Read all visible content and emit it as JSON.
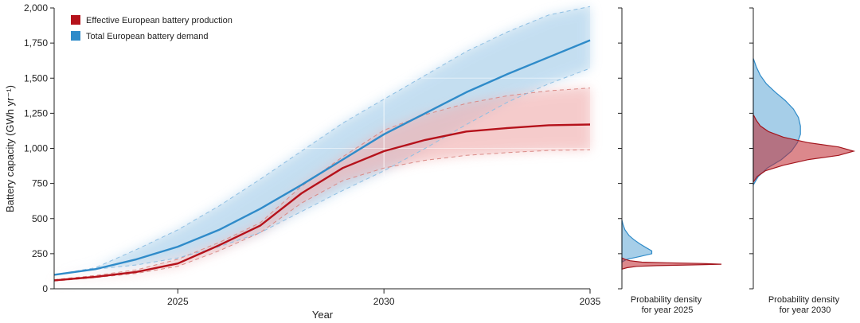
{
  "chart_data": [
    {
      "type": "line",
      "xlabel": "Year",
      "ylabel": "Battery capacity (GWh yr⁻¹)",
      "xlim": [
        2022,
        2035
      ],
      "ylim": [
        0,
        2000
      ],
      "x_ticks": [
        "2025",
        "2030",
        "2035"
      ],
      "y_ticks": [
        "0",
        "250",
        "500",
        "750",
        "1,000",
        "1,250",
        "1,500",
        "1,750",
        "2,000"
      ],
      "legend": {
        "position": "top-left"
      },
      "grid": false,
      "series": [
        {
          "name": "Effective European battery production",
          "color": "#b5121b",
          "x": [
            2022,
            2023,
            2024,
            2025,
            2026,
            2027,
            2028,
            2029,
            2030,
            2031,
            2032,
            2033,
            2034,
            2035
          ],
          "values": [
            60,
            85,
            120,
            180,
            310,
            450,
            680,
            860,
            980,
            1060,
            1120,
            1145,
            1165,
            1170
          ],
          "upper": [
            65,
            95,
            135,
            210,
            330,
            470,
            730,
            940,
            1130,
            1240,
            1320,
            1375,
            1410,
            1430
          ],
          "lower": [
            55,
            80,
            110,
            160,
            270,
            400,
            610,
            770,
            860,
            915,
            950,
            970,
            985,
            990
          ]
        },
        {
          "name": "Total European battery demand",
          "color": "#2f8bc9",
          "x": [
            2022,
            2023,
            2024,
            2025,
            2026,
            2027,
            2028,
            2029,
            2030,
            2031,
            2032,
            2033,
            2034,
            2035
          ],
          "values": [
            100,
            140,
            210,
            300,
            420,
            570,
            740,
            920,
            1100,
            1250,
            1400,
            1530,
            1650,
            1770
          ],
          "upper": [
            100,
            150,
            280,
            420,
            590,
            780,
            980,
            1180,
            1350,
            1520,
            1690,
            1830,
            1950,
            2010
          ],
          "lower": [
            100,
            140,
            170,
            220,
            300,
            400,
            550,
            700,
            840,
            1000,
            1170,
            1330,
            1460,
            1570
          ]
        }
      ]
    },
    {
      "type": "area",
      "title": "Probability density\nfor year 2025",
      "ylim": [
        0,
        2000
      ],
      "series": [
        {
          "name": "Effective European battery production",
          "y": [
            140,
            150,
            160,
            165,
            170,
            175,
            180,
            185,
            190,
            200,
            210,
            220
          ],
          "density": [
            0,
            0.05,
            0.15,
            0.35,
            0.7,
            1.0,
            0.8,
            0.45,
            0.2,
            0.08,
            0.03,
            0
          ]
        },
        {
          "name": "Total European battery demand",
          "y": [
            190,
            210,
            230,
            250,
            270,
            290,
            320,
            350,
            380,
            420,
            460,
            490
          ],
          "density": [
            0,
            0.05,
            0.18,
            0.3,
            0.3,
            0.25,
            0.18,
            0.12,
            0.07,
            0.03,
            0.01,
            0
          ]
        }
      ]
    },
    {
      "type": "area",
      "title": "Probability density\nfor year 2030",
      "ylim": [
        0,
        2000
      ],
      "series": [
        {
          "name": "Effective European battery production",
          "y": [
            760,
            800,
            840,
            880,
            920,
            950,
            980,
            1010,
            1040,
            1080,
            1120,
            1160,
            1200,
            1240
          ],
          "density": [
            0,
            0.04,
            0.12,
            0.3,
            0.55,
            0.85,
            1.0,
            0.85,
            0.55,
            0.3,
            0.15,
            0.07,
            0.03,
            0
          ]
        },
        {
          "name": "Total European battery demand",
          "y": [
            740,
            800,
            860,
            920,
            980,
            1040,
            1100,
            1160,
            1220,
            1280,
            1340,
            1400,
            1460,
            1520,
            1580,
            1640
          ],
          "density": [
            0,
            0.05,
            0.14,
            0.28,
            0.38,
            0.44,
            0.47,
            0.47,
            0.45,
            0.4,
            0.32,
            0.22,
            0.13,
            0.07,
            0.03,
            0
          ]
        }
      ]
    }
  ]
}
